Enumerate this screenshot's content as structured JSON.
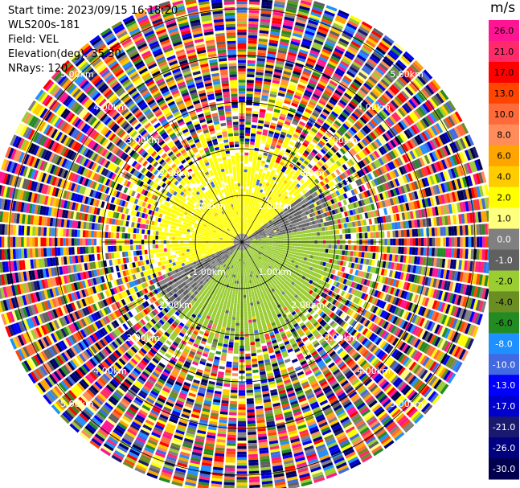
{
  "header": {
    "start_time": "Start time: 2023/09/15 16:18:20",
    "instrument": "WLS200s-181",
    "field": "Field: VEL",
    "elevation": "Elevation(deg): 35.30",
    "nrays": "NRays: 120"
  },
  "chart_data": {
    "type": "ppi-polar",
    "field": "VEL",
    "unit": "m/s",
    "nrays": 120,
    "range_rings_km": [
      1.0,
      2.0,
      3.0,
      4.0,
      5.0
    ],
    "ring_label_suffix": "km",
    "spoke_count": 12,
    "colorbar": {
      "ticks": [
        "26.0",
        "21.0",
        "17.0",
        "13.0",
        "10.0",
        "8.0",
        "6.0",
        "4.0",
        "2.0",
        "1.0",
        "0.0",
        "-1.0",
        "-2.0",
        "-4.0",
        "-6.0",
        "-8.0",
        "-10.0",
        "-13.0",
        "-17.0",
        "-21.0",
        "-26.0",
        "-30.0"
      ],
      "colors": [
        "#ff1493",
        "#ff2a6a",
        "#ff0000",
        "#ff4500",
        "#ff6a3a",
        "#ff8c5a",
        "#ffa500",
        "#ffcc00",
        "#ffff00",
        "#ffff80",
        "#808080",
        "#606060",
        "#9acd32",
        "#6b8e23",
        "#228b22",
        "#1e90ff",
        "#4169e1",
        "#0000ff",
        "#0000cd",
        "#191970",
        "#000080",
        "#00004f"
      ]
    },
    "fields_by_range_km": {
      "0-0.6": "mixed gray/yellow/green near zero",
      "0.6-2.0": "positive (yellow) to north and west, negative (gray/green) to south and east",
      "2.0-3.5": "noisy, mixed",
      "3.5-5.3": "random noise all colors"
    }
  }
}
